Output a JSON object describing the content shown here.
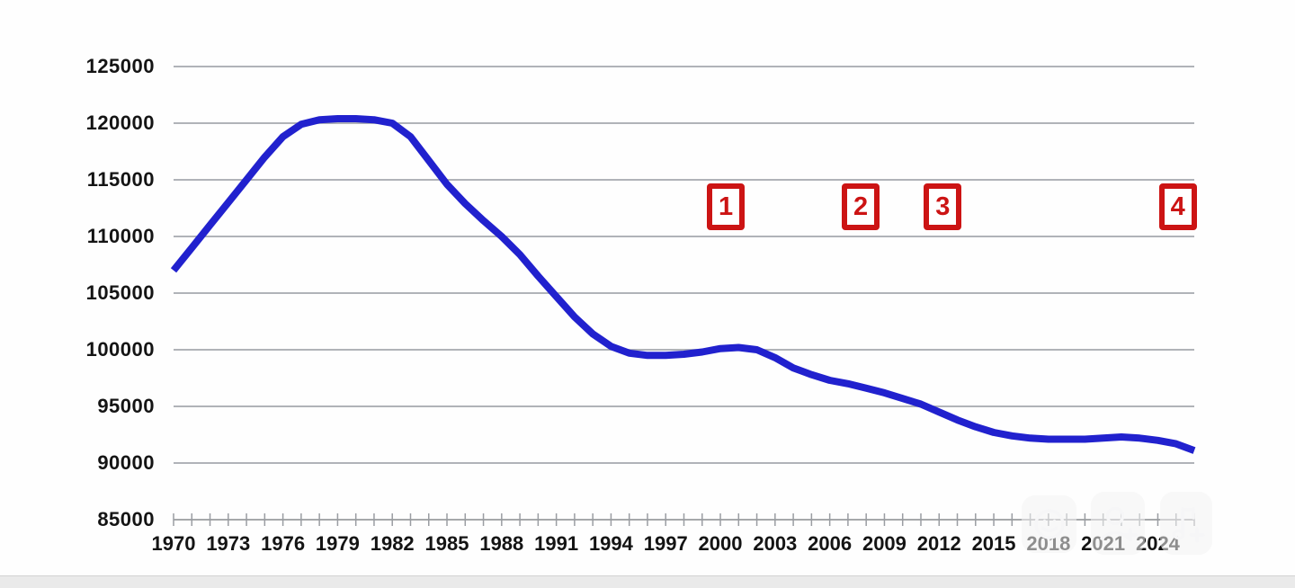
{
  "chart_data": {
    "type": "line",
    "title": "",
    "xlabel": "",
    "ylabel": "",
    "legend": "none",
    "grid": "horizontal",
    "ylim": [
      85000,
      125000
    ],
    "y_tick_step": 5000,
    "y_tick_labels": [
      "125000",
      "120000",
      "115000",
      "110000",
      "105000",
      "100000",
      "95000",
      "90000",
      "85000"
    ],
    "x_tick_years_labeled": [
      1970,
      1973,
      1976,
      1979,
      1982,
      1985,
      1988,
      1991,
      1994,
      1997,
      2000,
      2003,
      2006,
      2009,
      2012,
      2015,
      2018,
      2021,
      2024
    ],
    "x_minor_tick_every_year": true,
    "x_range": [
      1970,
      2026
    ],
    "years": [
      1970,
      1971,
      1972,
      1973,
      1974,
      1975,
      1976,
      1977,
      1978,
      1979,
      1980,
      1981,
      1982,
      1983,
      1984,
      1985,
      1986,
      1987,
      1988,
      1989,
      1990,
      1991,
      1992,
      1993,
      1994,
      1995,
      1996,
      1997,
      1998,
      1999,
      2000,
      2001,
      2002,
      2003,
      2004,
      2005,
      2006,
      2007,
      2008,
      2009,
      2010,
      2011,
      2012,
      2013,
      2014,
      2015,
      2016,
      2017,
      2018,
      2019,
      2020,
      2021,
      2022,
      2023,
      2024,
      2025,
      2026
    ],
    "values": [
      107000,
      109000,
      111000,
      113000,
      115000,
      117000,
      118800,
      119900,
      120300,
      120400,
      120400,
      120300,
      120000,
      118800,
      116700,
      114600,
      112900,
      111400,
      110000,
      108400,
      106500,
      104700,
      102900,
      101400,
      100300,
      99700,
      99500,
      99500,
      99600,
      99800,
      100100,
      100200,
      100000,
      99300,
      98400,
      97800,
      97300,
      97000,
      96600,
      96200,
      95700,
      95200,
      94500,
      93800,
      93200,
      92700,
      92400,
      92200,
      92100,
      92100,
      92100,
      92200,
      92300,
      92200,
      92000,
      91700,
      91100
    ]
  },
  "markers": [
    {
      "label": "1",
      "year": 2000.3,
      "value": 112600
    },
    {
      "label": "2",
      "year": 2007.7,
      "value": 112600
    },
    {
      "label": "3",
      "year": 2012.2,
      "value": 112600
    },
    {
      "label": "4",
      "year": 2025.1,
      "value": 112600
    }
  ],
  "colors": {
    "line": "#2121CE",
    "marker": "#CC1414",
    "marker_text": "#CC1414",
    "grid": "#A5A8AE",
    "axis": "#999B9E",
    "tick": "#9A9DA2",
    "text": "#141414",
    "footer_strip": "#EAEAEA"
  },
  "overlay_buttons": [
    {
      "name": "emoji-reaction",
      "icon": "smiley-icon"
    },
    {
      "name": "add-person",
      "icon": "person-plus-icon"
    },
    {
      "name": "add-music",
      "icon": "music-note-plus-icon"
    }
  ]
}
